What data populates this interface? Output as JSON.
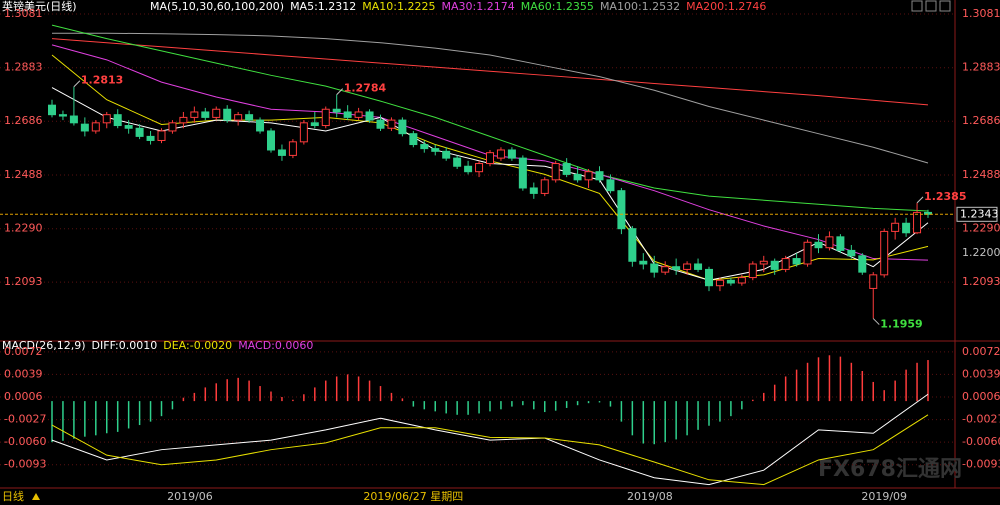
{
  "chart_data": {
    "type": "candlestick",
    "title": "英镑美元(日线)",
    "header": [
      {
        "text": "MA(5,10,30,60,100,200)",
        "color": "#ffffff"
      },
      {
        "text": "MA5:1.2312",
        "color": "#ffffff"
      },
      {
        "text": "MA10:1.2225",
        "color": "#e8e000"
      },
      {
        "text": "MA30:1.2174",
        "color": "#e040e0"
      },
      {
        "text": "MA60:1.2355",
        "color": "#40e040"
      },
      {
        "text": "MA100:1.2532",
        "color": "#a0a0a0"
      },
      {
        "text": "MA200:1.2746",
        "color": "#ff4040"
      }
    ],
    "up_color": "#ff3c3c",
    "down_color": "#2fd08c",
    "ylim": [
      1.188,
      1.3114
    ],
    "yticks": [
      1.3081,
      1.2883,
      1.2686,
      1.2488,
      {
        "value": 1.229,
        "label": "1.2290"
      },
      1.2093
    ],
    "right_extra_tick": {
      "value": 1.22,
      "label": "1.2200"
    },
    "last_price": 1.2343,
    "ohlc": [
      [
        1.2745,
        1.2765,
        1.27,
        1.271
      ],
      [
        1.271,
        1.2725,
        1.269,
        1.2705
      ],
      [
        1.2705,
        1.2813,
        1.267,
        1.268
      ],
      [
        1.2675,
        1.27,
        1.263,
        1.265
      ],
      [
        1.265,
        1.269,
        1.264,
        1.268
      ],
      [
        1.268,
        1.272,
        1.266,
        1.271
      ],
      [
        1.271,
        1.273,
        1.266,
        1.267
      ],
      [
        1.267,
        1.269,
        1.264,
        1.266
      ],
      [
        1.266,
        1.2675,
        1.262,
        1.263
      ],
      [
        1.263,
        1.265,
        1.26,
        1.2615
      ],
      [
        1.2615,
        1.266,
        1.2605,
        1.265
      ],
      [
        1.265,
        1.269,
        1.264,
        1.268
      ],
      [
        1.268,
        1.272,
        1.266,
        1.27
      ],
      [
        1.27,
        1.274,
        1.268,
        1.272
      ],
      [
        1.272,
        1.2735,
        1.269,
        1.27
      ],
      [
        1.27,
        1.274,
        1.269,
        1.273
      ],
      [
        1.273,
        1.2745,
        1.268,
        1.269
      ],
      [
        1.269,
        1.272,
        1.267,
        1.271
      ],
      [
        1.271,
        1.2725,
        1.268,
        1.269
      ],
      [
        1.269,
        1.27,
        1.264,
        1.265
      ],
      [
        1.265,
        1.266,
        1.257,
        1.258
      ],
      [
        1.258,
        1.26,
        1.254,
        1.256
      ],
      [
        1.256,
        1.262,
        1.255,
        1.261
      ],
      [
        1.261,
        1.269,
        1.26,
        1.268
      ],
      [
        1.268,
        1.272,
        1.266,
        1.267
      ],
      [
        1.267,
        1.274,
        1.266,
        1.273
      ],
      [
        1.273,
        1.2784,
        1.27,
        1.272
      ],
      [
        1.272,
        1.2745,
        1.269,
        1.27
      ],
      [
        1.27,
        1.2735,
        1.269,
        1.272
      ],
      [
        1.272,
        1.273,
        1.268,
        1.269
      ],
      [
        1.269,
        1.271,
        1.265,
        1.266
      ],
      [
        1.266,
        1.27,
        1.265,
        1.269
      ],
      [
        1.269,
        1.27,
        1.263,
        1.264
      ],
      [
        1.264,
        1.265,
        1.259,
        1.26
      ],
      [
        1.26,
        1.2615,
        1.257,
        1.2585
      ],
      [
        1.2585,
        1.26,
        1.256,
        1.2575
      ],
      [
        1.2575,
        1.259,
        1.254,
        1.255
      ],
      [
        1.255,
        1.256,
        1.251,
        1.252
      ],
      [
        1.252,
        1.254,
        1.249,
        1.25
      ],
      [
        1.25,
        1.254,
        1.248,
        1.253
      ],
      [
        1.253,
        1.258,
        1.252,
        1.257
      ],
      [
        1.255,
        1.259,
        1.254,
        1.258
      ],
      [
        1.258,
        1.259,
        1.254,
        1.255
      ],
      [
        1.255,
        1.256,
        1.243,
        1.244
      ],
      [
        1.244,
        1.246,
        1.24,
        1.242
      ],
      [
        1.242,
        1.248,
        1.241,
        1.247
      ],
      [
        1.247,
        1.254,
        1.246,
        1.253
      ],
      [
        1.253,
        1.255,
        1.248,
        1.249
      ],
      [
        1.249,
        1.252,
        1.246,
        1.247
      ],
      [
        1.247,
        1.251,
        1.244,
        1.25
      ],
      [
        1.25,
        1.252,
        1.246,
        1.247
      ],
      [
        1.247,
        1.249,
        1.242,
        1.243
      ],
      [
        1.243,
        1.244,
        1.227,
        1.229
      ],
      [
        1.229,
        1.23,
        1.215,
        1.217
      ],
      [
        1.217,
        1.22,
        1.214,
        1.216
      ],
      [
        1.216,
        1.219,
        1.211,
        1.213
      ],
      [
        1.213,
        1.217,
        1.212,
        1.215
      ],
      [
        1.215,
        1.218,
        1.212,
        1.214
      ],
      [
        1.214,
        1.217,
        1.212,
        1.216
      ],
      [
        1.216,
        1.218,
        1.213,
        1.214
      ],
      [
        1.214,
        1.215,
        1.206,
        1.208
      ],
      [
        1.208,
        1.211,
        1.206,
        1.21
      ],
      [
        1.21,
        1.211,
        1.208,
        1.209
      ],
      [
        1.209,
        1.212,
        1.208,
        1.211
      ],
      [
        1.211,
        1.217,
        1.21,
        1.216
      ],
      [
        1.216,
        1.219,
        1.213,
        1.217
      ],
      [
        1.217,
        1.218,
        1.212,
        1.214
      ],
      [
        1.214,
        1.219,
        1.213,
        1.218
      ],
      [
        1.218,
        1.22,
        1.215,
        1.216
      ],
      [
        1.216,
        1.225,
        1.215,
        1.224
      ],
      [
        1.224,
        1.227,
        1.22,
        1.222
      ],
      [
        1.222,
        1.228,
        1.221,
        1.226
      ],
      [
        1.226,
        1.227,
        1.22,
        1.221
      ],
      [
        1.221,
        1.223,
        1.218,
        1.219
      ],
      [
        1.219,
        1.22,
        1.212,
        1.213
      ],
      [
        1.207,
        1.213,
        1.1959,
        1.212
      ],
      [
        1.212,
        1.229,
        1.211,
        1.228
      ],
      [
        1.228,
        1.233,
        1.225,
        1.231
      ],
      [
        1.231,
        1.233,
        1.226,
        1.2275
      ],
      [
        1.2275,
        1.2385,
        1.227,
        1.235
      ],
      [
        1.235,
        1.236,
        1.233,
        1.2343
      ]
    ],
    "ma_x": [
      0,
      5,
      10,
      15,
      20,
      25,
      30,
      35,
      40,
      45,
      50,
      55,
      60,
      65,
      70,
      75,
      80
    ],
    "series": [
      {
        "color": "#ff4040",
        "values": [
          1.299,
          1.2975,
          1.296,
          1.2945,
          1.293,
          1.2915,
          1.29,
          1.2885,
          1.287,
          1.2855,
          1.284,
          1.2825,
          1.281,
          1.2795,
          1.278,
          1.2763,
          1.2746
        ]
      },
      {
        "color": "#a0a0a0",
        "values": [
          1.301,
          1.301,
          1.3008,
          1.3005,
          1.3,
          1.299,
          1.2975,
          1.2955,
          1.293,
          1.289,
          1.285,
          1.28,
          1.274,
          1.269,
          1.264,
          1.259,
          1.2532
        ]
      },
      {
        "color": "#40e040",
        "values": [
          1.304,
          1.299,
          1.2945,
          1.29,
          1.2855,
          1.2815,
          1.276,
          1.27,
          1.263,
          1.256,
          1.249,
          1.244,
          1.241,
          1.2395,
          1.238,
          1.2365,
          1.2355
        ]
      },
      {
        "color": "#e040e0",
        "values": [
          1.2967,
          1.2912,
          1.283,
          1.2775,
          1.273,
          1.272,
          1.27,
          1.263,
          1.256,
          1.254,
          1.249,
          1.243,
          1.236,
          1.23,
          1.225,
          1.218,
          1.2174
        ]
      },
      {
        "color": "#e8e000",
        "values": [
          1.293,
          1.2765,
          1.2674,
          1.269,
          1.269,
          1.27,
          1.268,
          1.26,
          1.254,
          1.249,
          1.242,
          1.217,
          1.21,
          1.212,
          1.218,
          1.2175,
          1.2225
        ]
      },
      {
        "color": "#ffffff",
        "values": [
          1.281,
          1.27,
          1.265,
          1.269,
          1.268,
          1.265,
          1.27,
          1.258,
          1.253,
          1.252,
          1.247,
          1.216,
          1.21,
          1.214,
          1.224,
          1.215,
          1.2312
        ]
      }
    ],
    "annotations": [
      {
        "index": 2,
        "value": 1.2813,
        "color": "#ff4040"
      },
      {
        "index": 26,
        "value": 1.2784,
        "color": "#ff4040"
      },
      {
        "index": 79,
        "value": 1.2385,
        "color": "#ff4040"
      },
      {
        "index": 75,
        "value": 1.1959,
        "color": "#40e040"
      }
    ],
    "xticks": [
      {
        "value": 12.6,
        "label": "2019/06"
      },
      {
        "value": 54.6,
        "label": "2019/08"
      },
      {
        "value": 76,
        "label": "2019/09"
      }
    ],
    "cursor": {
      "index": 33,
      "label": "2019/06/27 星期四"
    },
    "period_label": "日线",
    "watermark": "FX678汇通网",
    "macd": {
      "type": "bar",
      "header": [
        {
          "text": "MACD(26,12,9)",
          "color": "#ffffff"
        },
        {
          "text": "DIFF:0.0010",
          "color": "#ffffff"
        },
        {
          "text": "DEA:-0.0020",
          "color": "#e8e000"
        },
        {
          "text": "MACD:0.0060",
          "color": "#e040e0"
        }
      ],
      "ylim": [
        -0.0127,
        0.0082
      ],
      "yticks": [
        0.0072,
        0.0039,
        0.0006,
        -0.0027,
        {
          "value": -0.006,
          "label": "-0.0060"
        },
        -0.0093
      ],
      "values": [
        -0.006,
        -0.0058,
        -0.0055,
        -0.0052,
        -0.005,
        -0.0047,
        -0.0045,
        -0.004,
        -0.0035,
        -0.003,
        -0.0022,
        -0.0012,
        0.0005,
        0.0012,
        0.002,
        0.0026,
        0.0032,
        0.0034,
        0.003,
        0.0022,
        0.0014,
        0.0006,
        0.0002,
        0.001,
        0.002,
        0.003,
        0.0036,
        0.0039,
        0.0036,
        0.003,
        0.0022,
        0.0012,
        0.0004,
        -0.0008,
        -0.0012,
        -0.0015,
        -0.0018,
        -0.002,
        -0.002,
        -0.0018,
        -0.0015,
        -0.0012,
        -0.0008,
        -0.0006,
        -0.0012,
        -0.0016,
        -0.0014,
        -0.001,
        -0.0006,
        -0.0003,
        -0.0002,
        -0.0008,
        -0.003,
        -0.005,
        -0.0062,
        -0.0063,
        -0.006,
        -0.0056,
        -0.005,
        -0.0042,
        -0.0036,
        -0.003,
        -0.0022,
        -0.0012,
        0.0002,
        0.0012,
        0.0024,
        0.0036,
        0.0046,
        0.0056,
        0.0064,
        0.0067,
        0.0065,
        0.0056,
        0.0044,
        0.0028,
        0.0016,
        0.003,
        0.0046,
        0.0056,
        0.006
      ],
      "diff": {
        "color": "#ffffff",
        "values": [
          -0.0057,
          -0.0086,
          -0.0071,
          -0.0064,
          -0.0057,
          -0.0042,
          -0.0025,
          -0.0042,
          -0.0057,
          -0.0054,
          -0.0086,
          -0.0112,
          -0.0122,
          -0.0101,
          -0.0042,
          -0.0047,
          0.001
        ]
      },
      "dea": {
        "color": "#e8e000",
        "values": [
          -0.0035,
          -0.0079,
          -0.0093,
          -0.0086,
          -0.0071,
          -0.0061,
          -0.0039,
          -0.0039,
          -0.0053,
          -0.0054,
          -0.0064,
          -0.0089,
          -0.0115,
          -0.0122,
          -0.0086,
          -0.0071,
          -0.002
        ]
      }
    }
  }
}
